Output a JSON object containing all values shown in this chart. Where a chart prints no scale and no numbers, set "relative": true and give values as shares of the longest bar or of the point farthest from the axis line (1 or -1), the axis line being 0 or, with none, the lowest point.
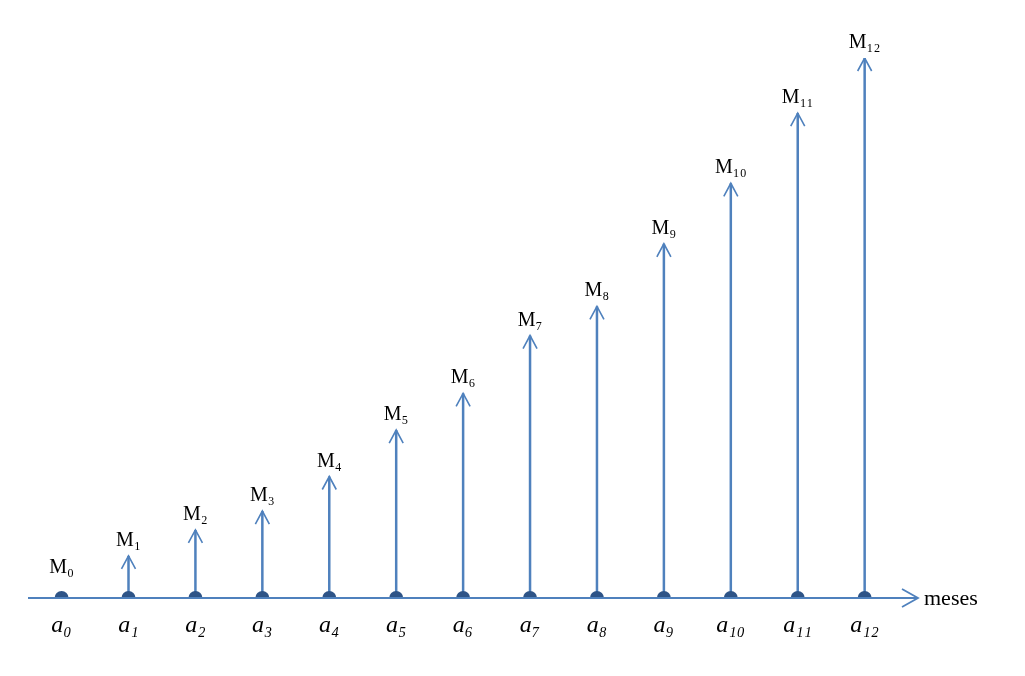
{
  "chart_data": {
    "type": "bar",
    "relative": true,
    "xlabel": "meses",
    "categories": [
      "a₀",
      "a₁",
      "a₂",
      "a₃",
      "a₄",
      "a₅",
      "a₆",
      "a₇",
      "a₈",
      "a₉",
      "a₁₀",
      "a₁₁",
      "a₁₂"
    ],
    "values": [
      0,
      0.078,
      0.126,
      0.161,
      0.225,
      0.311,
      0.379,
      0.486,
      0.54,
      0.656,
      0.768,
      0.898,
      1
    ],
    "annotations": [
      {
        "text": "M₀",
        "x": "a₀",
        "y": 0
      },
      {
        "text": "M₁",
        "x": "a₁",
        "y": 0.078
      },
      {
        "text": "M₂",
        "x": "a₂",
        "y": 0.126
      },
      {
        "text": "M₃",
        "x": "a₃",
        "y": 0.161
      },
      {
        "text": "M₄",
        "x": "a₄",
        "y": 0.225
      },
      {
        "text": "M₅",
        "x": "a₅",
        "y": 0.311
      },
      {
        "text": "M₆",
        "x": "a₆",
        "y": 0.379
      },
      {
        "text": "M₇",
        "x": "a₇",
        "y": 0.486
      },
      {
        "text": "M₈",
        "x": "a₈",
        "y": 0.54
      },
      {
        "text": "M₉",
        "x": "a₉",
        "y": 0.656
      },
      {
        "text": "M₁₀",
        "x": "a₁₀",
        "y": 0.768
      },
      {
        "text": "M₁₁",
        "x": "a₁₁",
        "y": 0.898
      },
      {
        "text": "M₁₂",
        "x": "a₁₂",
        "y": 1
      }
    ],
    "color": "#4f81bd"
  }
}
